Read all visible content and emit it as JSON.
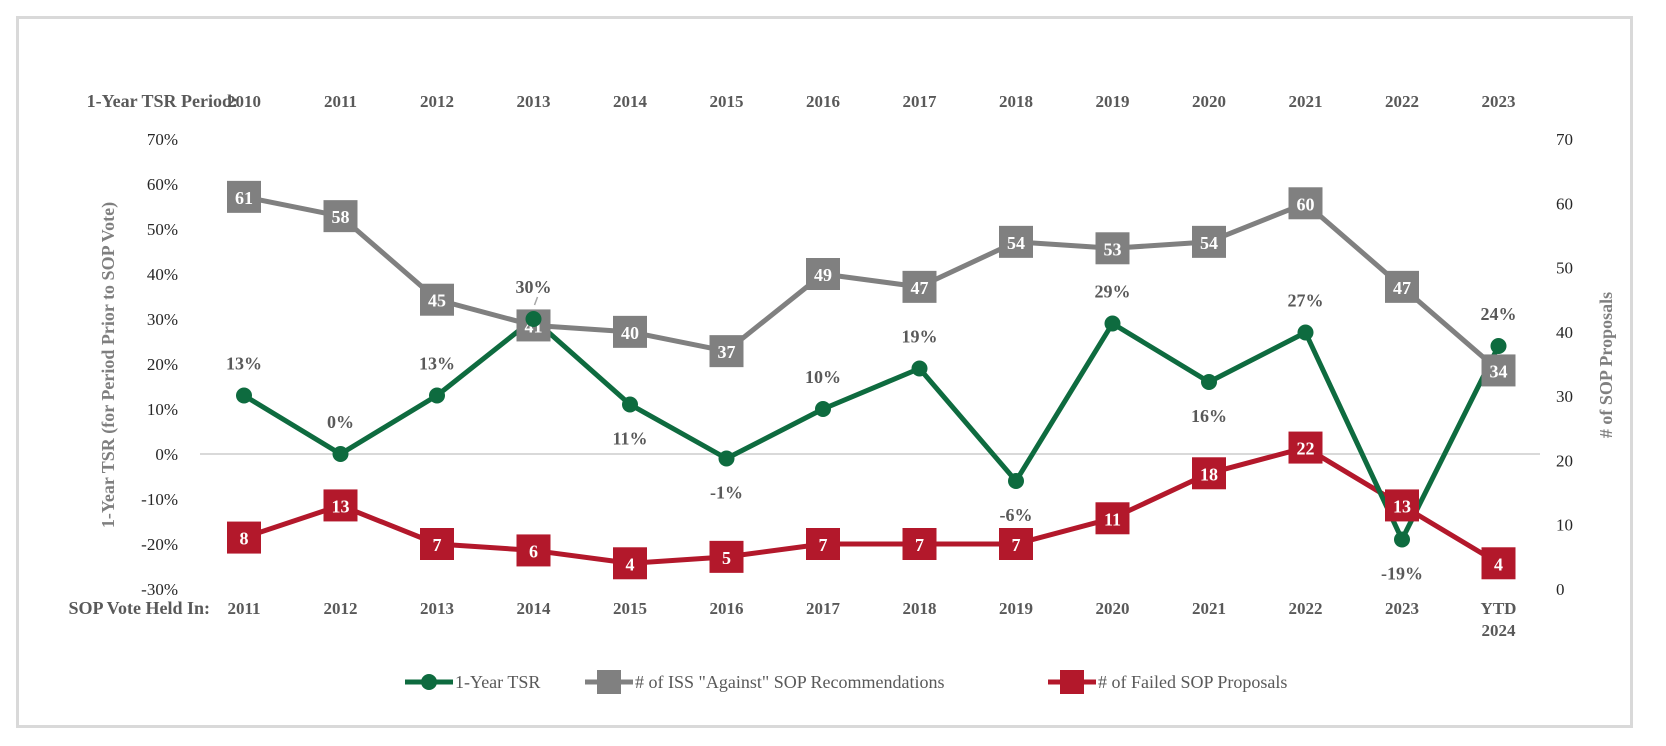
{
  "chart_data": {
    "type": "line",
    "top_row_title": "1-Year TSR Period:",
    "top_categories": [
      "2010",
      "2011",
      "2012",
      "2013",
      "2014",
      "2015",
      "2016",
      "2017",
      "2018",
      "2019",
      "2020",
      "2021",
      "2022",
      "2023"
    ],
    "bottom_row_title": "SOP Vote Held In:",
    "categories": [
      "2011",
      "2012",
      "2013",
      "2014",
      "2015",
      "2016",
      "2017",
      "2018",
      "2019",
      "2020",
      "2021",
      "2022",
      "2023",
      "YTD 2024"
    ],
    "category_lines": [
      [
        "2011"
      ],
      [
        "2012"
      ],
      [
        "2013"
      ],
      [
        "2014"
      ],
      [
        "2015"
      ],
      [
        "2016"
      ],
      [
        "2017"
      ],
      [
        "2018"
      ],
      [
        "2019"
      ],
      [
        "2020"
      ],
      [
        "2021"
      ],
      [
        "2022"
      ],
      [
        "2023"
      ],
      [
        "YTD",
        "2024"
      ]
    ],
    "y_left": {
      "label": "1-Year TSR (for Period Prior to SOP Vote)",
      "range": [
        -30,
        70
      ],
      "ticks": [
        70,
        60,
        50,
        40,
        30,
        20,
        10,
        0,
        -10,
        -20,
        -30
      ],
      "tick_labels": [
        "70%",
        "60%",
        "50%",
        "40%",
        "30%",
        "20%",
        "10%",
        "0%",
        "-10%",
        "-20%",
        "-30%"
      ]
    },
    "y_right": {
      "label": "# of SOP Proposals",
      "range": [
        0,
        70
      ],
      "ticks": [
        70,
        60,
        50,
        40,
        30,
        20,
        10,
        0
      ],
      "tick_labels": [
        "70",
        "60",
        "50",
        "40",
        "30",
        "20",
        "10",
        "0"
      ]
    },
    "gridlines": "single horizontal line at 0% / 20",
    "legend_position": "bottom-center",
    "series": [
      {
        "name": "1-Year TSR",
        "axis": "left",
        "color": "#0e6b3f",
        "marker": "circle",
        "values": [
          13,
          0,
          13,
          30,
          11,
          -1,
          10,
          19,
          -6,
          29,
          16,
          27,
          -19,
          24
        ],
        "labels": [
          "13%",
          "0%",
          "13%",
          "30%",
          "11%",
          "-1%",
          "10%",
          "19%",
          "-6%",
          "29%",
          "16%",
          "27%",
          "-19%",
          "24%"
        ],
        "label_pos": [
          "above",
          "above",
          "above",
          "above",
          "below",
          "below",
          "above",
          "above",
          "below",
          "above",
          "below",
          "above",
          "below",
          "above"
        ]
      },
      {
        "name": "# of ISS \"Against\" SOP Recommendations",
        "axis": "right",
        "color": "#808080",
        "marker": "square",
        "values": [
          61,
          58,
          45,
          41,
          40,
          37,
          49,
          47,
          54,
          53,
          54,
          60,
          47,
          34
        ],
        "labels": [
          "61",
          "58",
          "45",
          "41",
          "40",
          "37",
          "49",
          "47",
          "54",
          "53",
          "54",
          "60",
          "47",
          "34"
        ]
      },
      {
        "name": "# of Failed SOP Proposals",
        "axis": "right",
        "color": "#b3182b",
        "marker": "square",
        "values": [
          8,
          13,
          7,
          6,
          4,
          5,
          7,
          7,
          7,
          11,
          18,
          22,
          13,
          4
        ],
        "labels": [
          "8",
          "13",
          "7",
          "6",
          "4",
          "5",
          "7",
          "7",
          "7",
          "11",
          "18",
          "22",
          "13",
          "4"
        ]
      }
    ]
  },
  "legend": [
    {
      "label": "1-Year TSR",
      "color": "#0e6b3f",
      "marker": "circle"
    },
    {
      "label": "# of ISS \"Against\" SOP Recommendations",
      "color": "#808080",
      "marker": "square"
    },
    {
      "label": "# of Failed SOP Proposals",
      "color": "#b3182b",
      "marker": "square"
    }
  ]
}
